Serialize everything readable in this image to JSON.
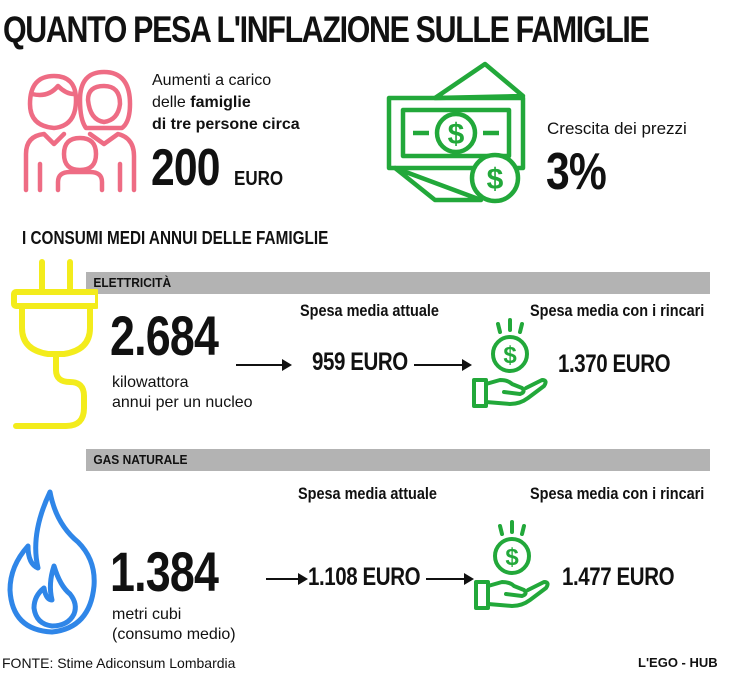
{
  "title": "QUANTO PESA L'INFLAZIONE SULLE FAMIGLIE",
  "family_block": {
    "line1": "Aumenti a carico",
    "line2_prefix": "delle ",
    "line2_bold": "famiglie",
    "line3": "di tre persone circa",
    "amount": "200",
    "unit": "EURO"
  },
  "price_block": {
    "label": "Crescita  dei prezzi",
    "value": "3%"
  },
  "section_title": "I CONSUMI MEDI ANNUI DELLE FAMIGLIE",
  "electricity": {
    "header": "ELETTRICITÀ",
    "consumption": "2.684",
    "desc_line1": "kilowattora",
    "desc_line2": "annui per un nucleo",
    "current_label": "Spesa media attuale",
    "current_value": "959 EURO",
    "new_label": "Spesa media con i rincari",
    "new_value": "1.370 EURO"
  },
  "gas": {
    "header": "GAS NATURALE",
    "consumption": "1.384",
    "desc_line1": "metri cubi",
    "desc_line2": "(consumo medio)",
    "current_label": "Spesa media attuale",
    "current_value": "1.108 EURO",
    "new_label": "Spesa media con i rincari",
    "new_value": "1.477 EURO"
  },
  "footer": {
    "source": "FONTE: Stime Adiconsum Lombardia",
    "brand": "L'EGO - HUB"
  },
  "colors": {
    "family_icon": "#ee6c84",
    "money_icon": "#22a83a",
    "plug_icon": "#f3ec1c",
    "flame_icon": "#2f86e8",
    "bar": "#b3b3b3"
  }
}
